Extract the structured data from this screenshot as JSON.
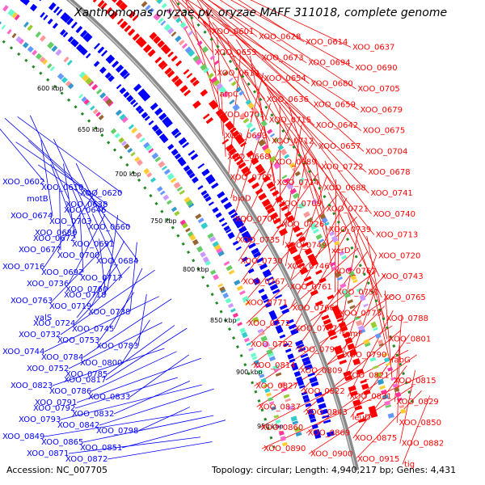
{
  "title": "Xanthomonas oryzae pv. oryzae MAFF 311018, complete genome",
  "footer": {
    "accession": "Accession: NC_007705",
    "stats": "Topology: circular; Length: 4,940,217 bp; Genes: 4,431"
  },
  "colors": {
    "forward": "#ff0000",
    "reverse": "#0000ff",
    "backbone": "#888888"
  },
  "ticks": [
    "600 kbp",
    "650 kbp",
    "700 kbp",
    "750 kbp",
    "800 kbp",
    "850 kbp",
    "900 kbp",
    "950 kbp"
  ],
  "left_labels": [
    "XOO_0602",
    "XOO_0610",
    "XOO_0620",
    "motB",
    "XOO_0638",
    "XOO_0646",
    "XOO_0674",
    "XOO_0703",
    "XOO_0660",
    "XOO_0686",
    "XOO_0672",
    "XOO_0691",
    "XOO_0677",
    "XOO_0700",
    "XOO_0684",
    "XOO_0716",
    "XOO_0692",
    "XOO_0717",
    "XOO_0736",
    "XOO_0760",
    "XOO_0718",
    "XOO_0763",
    "XOO_0719",
    "XOO_0738",
    "valS",
    "XOO_0724",
    "XOO_0745",
    "XOO_0732",
    "XOO_0753",
    "XOO_0783",
    "XOO_0744",
    "XOO_0784",
    "XOO_0800",
    "XOO_0752",
    "XOO_0785",
    "XOO_0817",
    "XOO_0823",
    "XOO_0786",
    "XOO_0833",
    "XOO_0791",
    "XOO_0792",
    "XOO_0832",
    "XOO_0793",
    "XOO_0842",
    "XOO_0798",
    "XOO_0849",
    "XOO_0865",
    "XOO_0851",
    "XOO_0871",
    "XOO_0872"
  ],
  "right_labels": [
    "XOO_0601",
    "XOO_0628",
    "XOO_0614",
    "XOO_0637",
    "XOO_0655",
    "XOO_0673",
    "XOO_0694",
    "XOO_0690",
    "XOO_0619",
    "XOO_0654",
    "XOO_0680",
    "XOO_0705",
    "atpC",
    "XOO_0636",
    "XOO_0659",
    "XOO_0679",
    "XOO_0701",
    "XOO_0715",
    "XOO_0642",
    "XOO_0675",
    "XOO_0693",
    "XOO_0712",
    "XOO_0657",
    "XOO_0704",
    "XOO_0668",
    "XOO_0689",
    "XOO_0722",
    "XOO_0678",
    "XOO_0702",
    "XOO_0714",
    "XOO_0688",
    "XOO_0741",
    "bioD",
    "XOO_0709",
    "XOO_0721",
    "XOO_0740",
    "XOO_0706",
    "XOO_0726",
    "XOO_0739",
    "XOO_0713",
    "XOO_0735",
    "XOO_0749",
    "xerD",
    "XOO_0720",
    "XOO_0730",
    "XOO_0746",
    "XOO_0762",
    "XOO_0743",
    "XOO_0767",
    "XOO_0761",
    "XOO_0751",
    "XOO_0765",
    "XOO_0771",
    "XOO_0766",
    "XOO_0773",
    "XOO_0788",
    "XOO_0772",
    "XOO_0787",
    "rpmF",
    "XOO_0801",
    "XOO_0782",
    "XOO_0799",
    "XOO_0790",
    "fabG",
    "XOO_0814",
    "XOO_0809",
    "XOO_0821",
    "XOO_0815",
    "XOO_0827",
    "XOO_0822",
    "XOO_0831",
    "XOO_0829",
    "XOO_0837",
    "XOO_0843",
    "leuD",
    "XOO_0850",
    "XOO_0860",
    "XOO_0869",
    "XOO_0875",
    "XOO_0882",
    "XOO_0890",
    "XOO_0900",
    "XOO_0915",
    "tig"
  ]
}
